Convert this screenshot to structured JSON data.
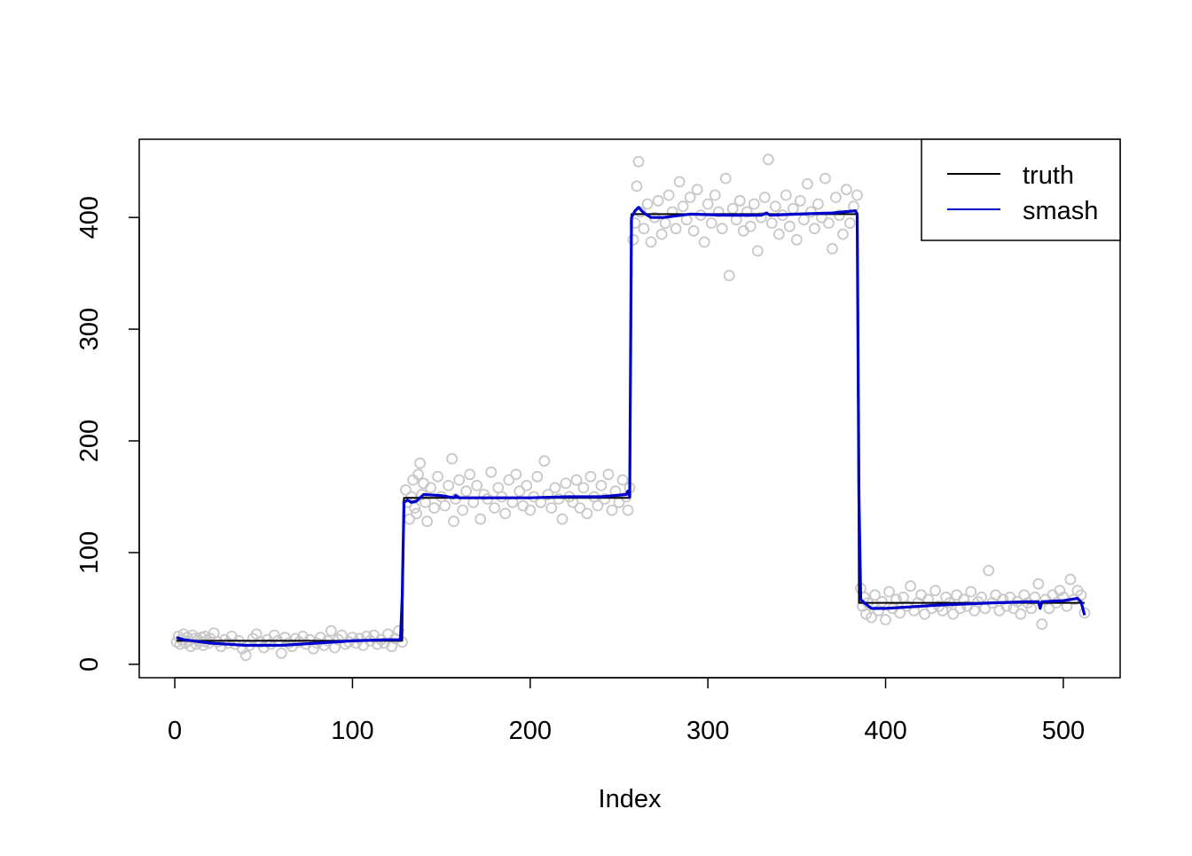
{
  "chart_data": {
    "type": "scatter",
    "title": "",
    "xlabel": "Index",
    "ylabel": "",
    "xlim": [
      -20,
      532
    ],
    "ylim": [
      -12,
      470
    ],
    "x_ticks": [
      0,
      100,
      200,
      300,
      400,
      500
    ],
    "y_ticks": [
      0,
      100,
      200,
      300,
      400
    ],
    "grid": false,
    "legend": {
      "placement": "top-right",
      "entries": [
        {
          "label": "truth",
          "color": "#000000"
        },
        {
          "label": "smash",
          "color": "#0000CD"
        }
      ]
    },
    "segments": [
      {
        "start": 1,
        "end": 128,
        "level": 21
      },
      {
        "start": 129,
        "end": 256,
        "level": 149
      },
      {
        "start": 257,
        "end": 384,
        "level": 403
      },
      {
        "start": 385,
        "end": 512,
        "level": 55
      }
    ],
    "scatter_color": "#C8C8C8",
    "series": [
      {
        "name": "truth",
        "color": "#000000",
        "x": [
          1,
          128,
          129,
          256,
          257,
          384,
          385,
          512
        ],
        "y": [
          21,
          21,
          149,
          149,
          403,
          403,
          55,
          55
        ]
      },
      {
        "name": "smash",
        "color": "#0000CD",
        "x": [
          1,
          5,
          20,
          40,
          60,
          80,
          100,
          120,
          127,
          128,
          129,
          131,
          133,
          136,
          140,
          150,
          157,
          158,
          160,
          180,
          200,
          220,
          240,
          254,
          255,
          256,
          257,
          259,
          261,
          264,
          268,
          275,
          290,
          310,
          330,
          333,
          335,
          350,
          370,
          383,
          384,
          385,
          386,
          388,
          392,
          400,
          430,
          460,
          480,
          486,
          487,
          488,
          500,
          508,
          510,
          512
        ],
        "y": [
          24,
          22,
          19,
          17,
          17,
          19,
          21,
          22,
          22,
          60,
          145,
          147,
          145,
          146,
          152,
          151,
          149,
          151,
          149,
          149,
          149,
          150,
          150,
          152,
          155,
          150,
          400,
          406,
          409,
          404,
          400,
          400,
          403,
          402,
          402,
          404,
          402,
          403,
          404,
          406,
          403,
          150,
          58,
          55,
          50,
          50,
          53,
          55,
          56,
          56,
          50,
          56,
          57,
          59,
          56,
          44
        ]
      }
    ],
    "points": [
      [
        1,
        20
      ],
      [
        2,
        25
      ],
      [
        3,
        18
      ],
      [
        4,
        22
      ],
      [
        5,
        27
      ],
      [
        6,
        19
      ],
      [
        7,
        24
      ],
      [
        8,
        21
      ],
      [
        9,
        16
      ],
      [
        10,
        26
      ],
      [
        11,
        23
      ],
      [
        12,
        18
      ],
      [
        13,
        22
      ],
      [
        14,
        20
      ],
      [
        15,
        24
      ],
      [
        16,
        17
      ],
      [
        17,
        25
      ],
      [
        18,
        21
      ],
      [
        19,
        19
      ],
      [
        20,
        23
      ],
      [
        22,
        28
      ],
      [
        24,
        20
      ],
      [
        26,
        16
      ],
      [
        28,
        22
      ],
      [
        30,
        19
      ],
      [
        32,
        25
      ],
      [
        34,
        18
      ],
      [
        36,
        21
      ],
      [
        38,
        14
      ],
      [
        40,
        8
      ],
      [
        42,
        17
      ],
      [
        44,
        23
      ],
      [
        46,
        27
      ],
      [
        48,
        20
      ],
      [
        50,
        15
      ],
      [
        52,
        22
      ],
      [
        54,
        18
      ],
      [
        56,
        26
      ],
      [
        58,
        21
      ],
      [
        60,
        10
      ],
      [
        62,
        24
      ],
      [
        64,
        19
      ],
      [
        66,
        16
      ],
      [
        68,
        23
      ],
      [
        70,
        20
      ],
      [
        72,
        25
      ],
      [
        74,
        18
      ],
      [
        76,
        22
      ],
      [
        78,
        14
      ],
      [
        80,
        19
      ],
      [
        82,
        24
      ],
      [
        84,
        17
      ],
      [
        86,
        21
      ],
      [
        88,
        30
      ],
      [
        90,
        15
      ],
      [
        92,
        22
      ],
      [
        94,
        26
      ],
      [
        96,
        18
      ],
      [
        98,
        20
      ],
      [
        100,
        24
      ],
      [
        102,
        19
      ],
      [
        104,
        23
      ],
      [
        106,
        17
      ],
      [
        108,
        25
      ],
      [
        110,
        21
      ],
      [
        112,
        26
      ],
      [
        114,
        18
      ],
      [
        116,
        22
      ],
      [
        118,
        19
      ],
      [
        120,
        27
      ],
      [
        122,
        16
      ],
      [
        124,
        23
      ],
      [
        126,
        30
      ],
      [
        128,
        20
      ],
      [
        130,
        156
      ],
      [
        131,
        145
      ],
      [
        132,
        130
      ],
      [
        133,
        150
      ],
      [
        134,
        165
      ],
      [
        135,
        140
      ],
      [
        136,
        135
      ],
      [
        137,
        170
      ],
      [
        138,
        180
      ],
      [
        139,
        152
      ],
      [
        140,
        162
      ],
      [
        141,
        145
      ],
      [
        142,
        128
      ],
      [
        144,
        158
      ],
      [
        146,
        140
      ],
      [
        148,
        168
      ],
      [
        150,
        150
      ],
      [
        152,
        142
      ],
      [
        154,
        160
      ],
      [
        156,
        184
      ],
      [
        157,
        128
      ],
      [
        158,
        148
      ],
      [
        160,
        165
      ],
      [
        162,
        138
      ],
      [
        164,
        155
      ],
      [
        166,
        170
      ],
      [
        168,
        145
      ],
      [
        170,
        160
      ],
      [
        172,
        130
      ],
      [
        174,
        152
      ],
      [
        176,
        148
      ],
      [
        178,
        172
      ],
      [
        180,
        140
      ],
      [
        182,
        158
      ],
      [
        184,
        150
      ],
      [
        186,
        135
      ],
      [
        188,
        165
      ],
      [
        190,
        145
      ],
      [
        192,
        170
      ],
      [
        194,
        155
      ],
      [
        196,
        142
      ],
      [
        198,
        160
      ],
      [
        200,
        138
      ],
      [
        202,
        150
      ],
      [
        204,
        168
      ],
      [
        206,
        145
      ],
      [
        208,
        182
      ],
      [
        210,
        152
      ],
      [
        212,
        140
      ],
      [
        214,
        158
      ],
      [
        216,
        148
      ],
      [
        218,
        130
      ],
      [
        220,
        162
      ],
      [
        222,
        150
      ],
      [
        224,
        145
      ],
      [
        226,
        165
      ],
      [
        228,
        140
      ],
      [
        230,
        158
      ],
      [
        232,
        135
      ],
      [
        234,
        168
      ],
      [
        236,
        150
      ],
      [
        238,
        142
      ],
      [
        240,
        160
      ],
      [
        242,
        148
      ],
      [
        244,
        170
      ],
      [
        246,
        138
      ],
      [
        248,
        155
      ],
      [
        250,
        145
      ],
      [
        252,
        165
      ],
      [
        254,
        150
      ],
      [
        255,
        138
      ],
      [
        256,
        158
      ],
      [
        258,
        380
      ],
      [
        259,
        395
      ],
      [
        260,
        428
      ],
      [
        261,
        450
      ],
      [
        262,
        405
      ],
      [
        264,
        390
      ],
      [
        266,
        412
      ],
      [
        268,
        378
      ],
      [
        270,
        400
      ],
      [
        272,
        415
      ],
      [
        274,
        385
      ],
      [
        276,
        395
      ],
      [
        278,
        420
      ],
      [
        280,
        405
      ],
      [
        282,
        390
      ],
      [
        284,
        432
      ],
      [
        286,
        410
      ],
      [
        288,
        398
      ],
      [
        290,
        418
      ],
      [
        292,
        388
      ],
      [
        294,
        425
      ],
      [
        296,
        402
      ],
      [
        298,
        378
      ],
      [
        300,
        412
      ],
      [
        302,
        395
      ],
      [
        304,
        420
      ],
      [
        306,
        405
      ],
      [
        308,
        390
      ],
      [
        310,
        435
      ],
      [
        312,
        348
      ],
      [
        314,
        408
      ],
      [
        316,
        398
      ],
      [
        318,
        415
      ],
      [
        320,
        388
      ],
      [
        322,
        405
      ],
      [
        324,
        392
      ],
      [
        326,
        412
      ],
      [
        328,
        370
      ],
      [
        330,
        400
      ],
      [
        332,
        418
      ],
      [
        334,
        452
      ],
      [
        336,
        395
      ],
      [
        338,
        410
      ],
      [
        340,
        385
      ],
      [
        342,
        402
      ],
      [
        344,
        420
      ],
      [
        346,
        392
      ],
      [
        348,
        408
      ],
      [
        350,
        380
      ],
      [
        352,
        415
      ],
      [
        354,
        398
      ],
      [
        356,
        430
      ],
      [
        358,
        405
      ],
      [
        360,
        390
      ],
      [
        362,
        412
      ],
      [
        364,
        400
      ],
      [
        366,
        435
      ],
      [
        368,
        395
      ],
      [
        370,
        372
      ],
      [
        372,
        418
      ],
      [
        374,
        402
      ],
      [
        376,
        385
      ],
      [
        378,
        425
      ],
      [
        380,
        395
      ],
      [
        382,
        410
      ],
      [
        384,
        420
      ],
      [
        386,
        68
      ],
      [
        387,
        52
      ],
      [
        388,
        60
      ],
      [
        389,
        45
      ],
      [
        390,
        55
      ],
      [
        392,
        42
      ],
      [
        394,
        62
      ],
      [
        396,
        48
      ],
      [
        398,
        56
      ],
      [
        400,
        40
      ],
      [
        402,
        65
      ],
      [
        404,
        50
      ],
      [
        406,
        58
      ],
      [
        408,
        46
      ],
      [
        410,
        60
      ],
      [
        412,
        52
      ],
      [
        414,
        70
      ],
      [
        416,
        48
      ],
      [
        418,
        55
      ],
      [
        420,
        62
      ],
      [
        422,
        45
      ],
      [
        424,
        58
      ],
      [
        426,
        50
      ],
      [
        428,
        66
      ],
      [
        430,
        52
      ],
      [
        432,
        48
      ],
      [
        434,
        60
      ],
      [
        436,
        55
      ],
      [
        438,
        45
      ],
      [
        440,
        62
      ],
      [
        442,
        50
      ],
      [
        444,
        58
      ],
      [
        446,
        52
      ],
      [
        448,
        65
      ],
      [
        450,
        48
      ],
      [
        452,
        56
      ],
      [
        454,
        60
      ],
      [
        456,
        50
      ],
      [
        458,
        84
      ],
      [
        460,
        55
      ],
      [
        462,
        62
      ],
      [
        464,
        48
      ],
      [
        466,
        58
      ],
      [
        468,
        52
      ],
      [
        470,
        60
      ],
      [
        472,
        50
      ],
      [
        474,
        56
      ],
      [
        476,
        45
      ],
      [
        478,
        62
      ],
      [
        480,
        55
      ],
      [
        482,
        50
      ],
      [
        484,
        60
      ],
      [
        486,
        72
      ],
      [
        488,
        36
      ],
      [
        490,
        58
      ],
      [
        492,
        50
      ],
      [
        494,
        62
      ],
      [
        496,
        55
      ],
      [
        498,
        66
      ],
      [
        500,
        60
      ],
      [
        502,
        52
      ],
      [
        504,
        76
      ],
      [
        506,
        58
      ],
      [
        508,
        66
      ],
      [
        510,
        62
      ],
      [
        512,
        46
      ]
    ]
  }
}
